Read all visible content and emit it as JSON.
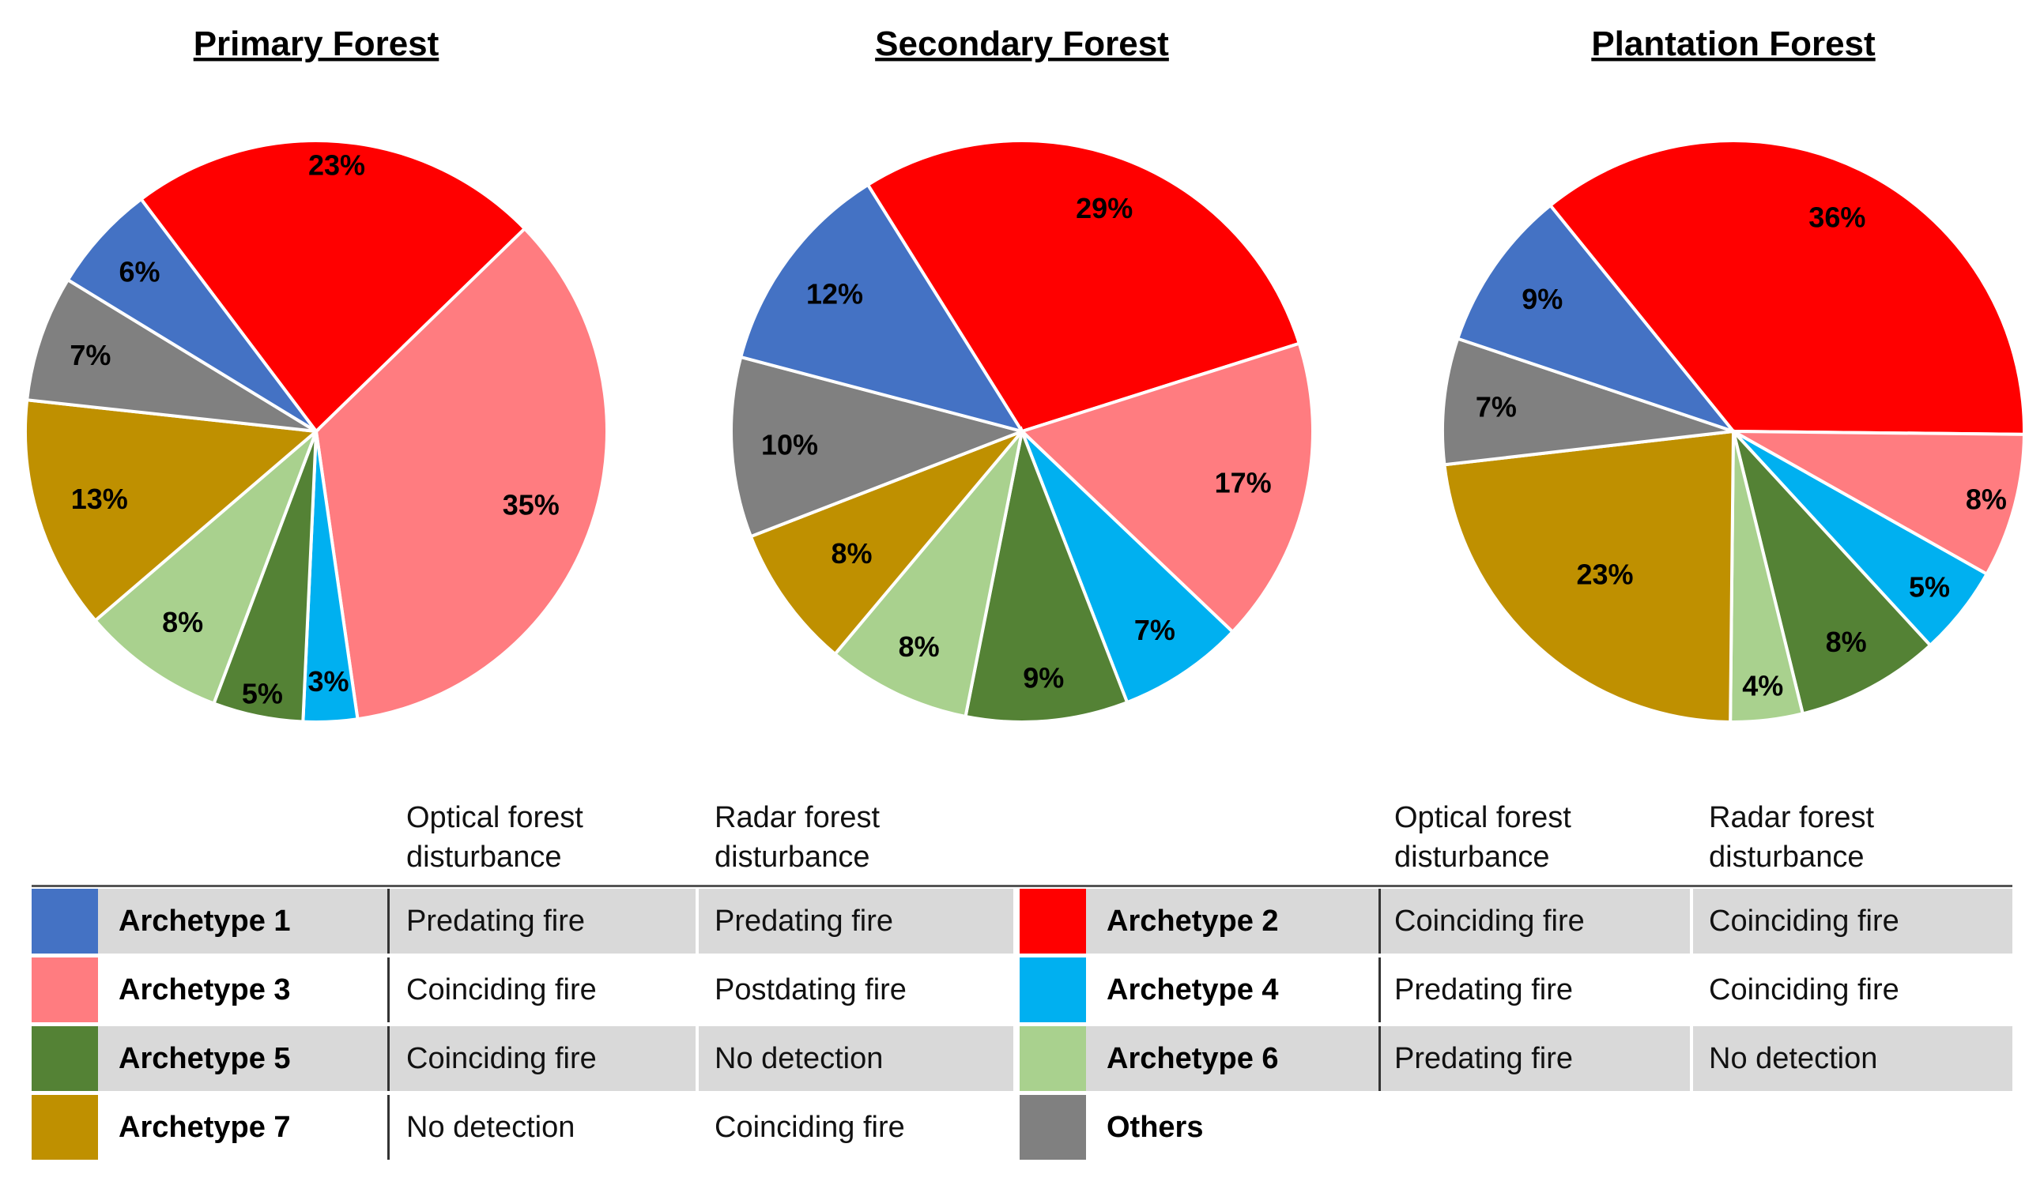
{
  "chart_data": [
    {
      "type": "pie",
      "title": "Primary Forest",
      "slices": [
        {
          "label": "Archetype 2",
          "value": 23,
          "text": "23%"
        },
        {
          "label": "Archetype 3",
          "value": 35,
          "text": "35%"
        },
        {
          "label": "Archetype 4",
          "value": 3,
          "text": "3%"
        },
        {
          "label": "Archetype 5",
          "value": 5,
          "text": "5%"
        },
        {
          "label": "Archetype 6",
          "value": 8,
          "text": "8%"
        },
        {
          "label": "Archetype 7",
          "value": 13,
          "text": "13%"
        },
        {
          "label": "Others",
          "value": 7,
          "text": "7%"
        },
        {
          "label": "Archetype 1",
          "value": 6,
          "text": "6%"
        }
      ]
    },
    {
      "type": "pie",
      "title": "Secondary Forest",
      "slices": [
        {
          "label": "Archetype 2",
          "value": 29,
          "text": "29%"
        },
        {
          "label": "Archetype 3",
          "value": 17,
          "text": "17%"
        },
        {
          "label": "Archetype 4",
          "value": 7,
          "text": "7%"
        },
        {
          "label": "Archetype 5",
          "value": 9,
          "text": "9%"
        },
        {
          "label": "Archetype 6",
          "value": 8,
          "text": "8%"
        },
        {
          "label": "Archetype 7",
          "value": 8,
          "text": "8%"
        },
        {
          "label": "Others",
          "value": 10,
          "text": "10%"
        },
        {
          "label": "Archetype 1",
          "value": 12,
          "text": "12%"
        }
      ]
    },
    {
      "type": "pie",
      "title": "Plantation Forest",
      "slices": [
        {
          "label": "Archetype 2",
          "value": 36,
          "text": "36%"
        },
        {
          "label": "Archetype 3",
          "value": 8,
          "text": "8%"
        },
        {
          "label": "Archetype 4",
          "value": 5,
          "text": "5%"
        },
        {
          "label": "Archetype 5",
          "value": 8,
          "text": "8%"
        },
        {
          "label": "Archetype 6",
          "value": 4,
          "text": "4%"
        },
        {
          "label": "Archetype 7",
          "value": 23,
          "text": "23%"
        },
        {
          "label": "Others",
          "value": 7,
          "text": "7%"
        },
        {
          "label": "Archetype 1",
          "value": 9,
          "text": "9%"
        }
      ]
    }
  ],
  "colors": {
    "Archetype 1": "#4472c4",
    "Archetype 2": "#ff0000",
    "Archetype 3": "#ff7c80",
    "Archetype 4": "#00b0f0",
    "Archetype 5": "#548235",
    "Archetype 6": "#a9d18e",
    "Archetype 7": "#bf9000",
    "Others": "#808080"
  },
  "legend": {
    "headers": {
      "optical": "Optical forest disturbance",
      "radar": "Radar forest disturbance"
    },
    "left": [
      {
        "name": "Archetype 1",
        "optical": "Predating fire",
        "radar": "Predating fire"
      },
      {
        "name": "Archetype 3",
        "optical": "Coinciding fire",
        "radar": "Postdating fire"
      },
      {
        "name": "Archetype 5",
        "optical": "Coinciding fire",
        "radar": "No detection"
      },
      {
        "name": "Archetype 7",
        "optical": "No detection",
        "radar": "Coinciding fire"
      }
    ],
    "right": [
      {
        "name": "Archetype 2",
        "optical": "Coinciding fire",
        "radar": "Coinciding fire"
      },
      {
        "name": "Archetype 4",
        "optical": "Predating fire",
        "radar": "Coinciding fire"
      },
      {
        "name": "Archetype 6",
        "optical": "Predating fire",
        "radar": "No detection"
      },
      {
        "name": "Others",
        "optical": "",
        "radar": ""
      }
    ]
  }
}
